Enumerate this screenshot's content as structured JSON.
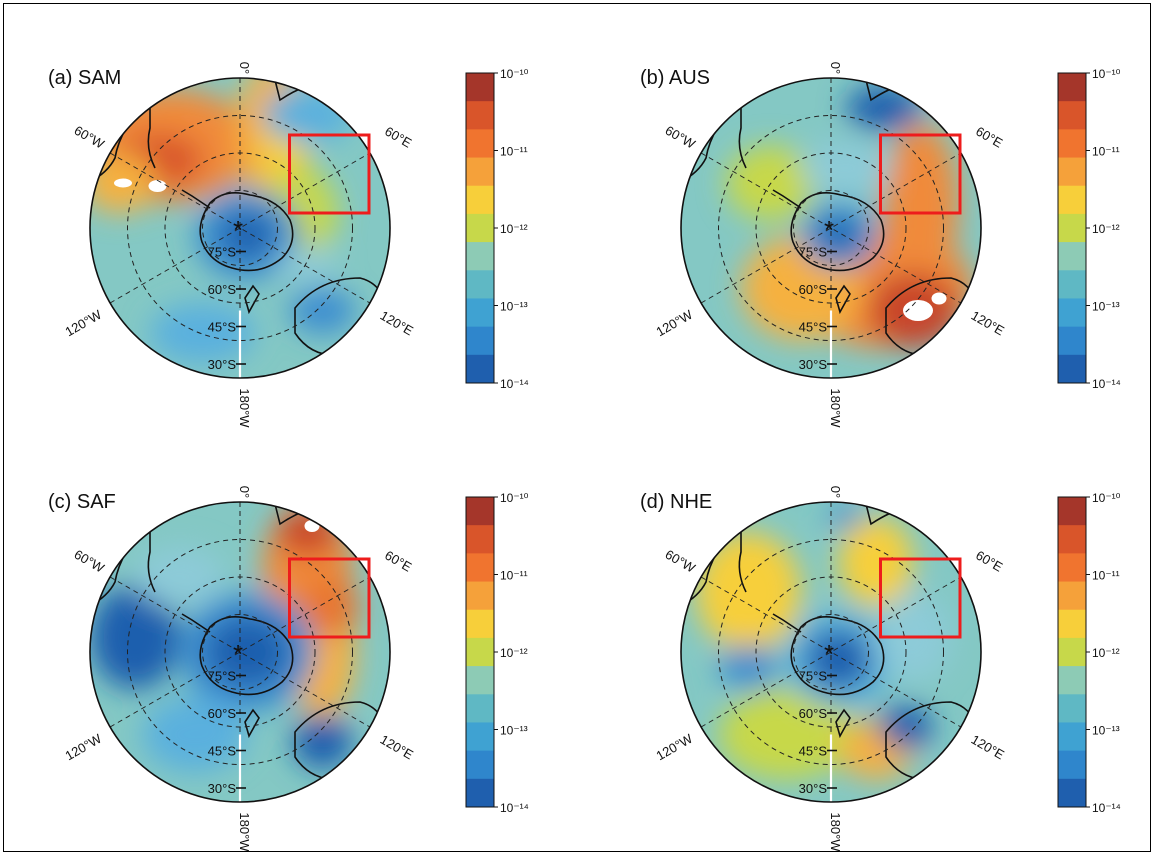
{
  "panels": [
    {
      "id": "a",
      "title": "(a) SAM",
      "blobs": [
        {
          "dx": -0.45,
          "dy": -0.55,
          "rx": 0.55,
          "ry": 0.38,
          "c": "#f08a3a"
        },
        {
          "dx": -0.55,
          "dy": -0.45,
          "rx": 0.3,
          "ry": 0.18,
          "c": "#d9552a"
        },
        {
          "dx": -0.8,
          "dy": -0.3,
          "rx": 0.25,
          "ry": 0.2,
          "c": "#f5b13f"
        },
        {
          "dx": 0.2,
          "dy": -0.65,
          "rx": 0.22,
          "ry": 0.45,
          "c": "#f5b13f"
        },
        {
          "dx": 0.3,
          "dy": -0.55,
          "rx": 0.16,
          "ry": 0.35,
          "c": "#f7cf3a"
        },
        {
          "dx": 0.45,
          "dy": -0.75,
          "rx": 0.3,
          "ry": 0.18,
          "c": "#5ab0de"
        },
        {
          "dx": 0.4,
          "dy": -0.1,
          "rx": 0.25,
          "ry": 0.3,
          "c": "#c7d84a"
        },
        {
          "dx": 0.05,
          "dy": 0.05,
          "rx": 0.35,
          "ry": 0.3,
          "c": "#3e8fd0"
        },
        {
          "dx": 0.05,
          "dy": 0.05,
          "rx": 0.18,
          "ry": 0.15,
          "c": "#1f5fae"
        },
        {
          "dx": 0.55,
          "dy": 0.55,
          "rx": 0.22,
          "ry": 0.16,
          "c": "#3e8fd0"
        },
        {
          "dx": -0.25,
          "dy": 0.7,
          "rx": 0.35,
          "ry": 0.2,
          "c": "#5ab0de"
        },
        {
          "dx": 0.45,
          "dy": 0.25,
          "rx": 0.2,
          "ry": 0.12,
          "c": "#8dcbd8"
        }
      ],
      "white_patches": [
        {
          "dx": -0.78,
          "dy": -0.3,
          "rx": 0.06,
          "ry": 0.03
        },
        {
          "dx": -0.55,
          "dy": -0.28,
          "rx": 0.06,
          "ry": 0.04
        }
      ]
    },
    {
      "id": "b",
      "title": "(b) AUS",
      "blobs": [
        {
          "dx": 0.6,
          "dy": -0.15,
          "rx": 0.25,
          "ry": 0.55,
          "c": "#f08a3a"
        },
        {
          "dx": 0.35,
          "dy": 0.4,
          "rx": 0.6,
          "ry": 0.4,
          "c": "#f08a3a"
        },
        {
          "dx": 0.55,
          "dy": 0.55,
          "rx": 0.3,
          "ry": 0.25,
          "c": "#c8452a"
        },
        {
          "dx": -0.2,
          "dy": 0.4,
          "rx": 0.4,
          "ry": 0.35,
          "c": "#f5b13f"
        },
        {
          "dx": -0.4,
          "dy": -0.3,
          "rx": 0.3,
          "ry": 0.25,
          "c": "#c7d84a"
        },
        {
          "dx": 0.35,
          "dy": -0.8,
          "rx": 0.25,
          "ry": 0.15,
          "c": "#1f5fae"
        },
        {
          "dx": 0.05,
          "dy": 0.05,
          "rx": 0.25,
          "ry": 0.22,
          "c": "#3e8fd0"
        },
        {
          "dx": 0.05,
          "dy": 0.05,
          "rx": 0.13,
          "ry": 0.11,
          "c": "#1f5fae"
        },
        {
          "dx": 0.1,
          "dy": -0.4,
          "rx": 0.3,
          "ry": 0.18,
          "c": "#8dcbd8"
        }
      ],
      "white_patches": [
        {
          "dx": 0.58,
          "dy": 0.55,
          "rx": 0.1,
          "ry": 0.07
        },
        {
          "dx": 0.72,
          "dy": 0.47,
          "rx": 0.05,
          "ry": 0.04
        }
      ]
    },
    {
      "id": "c",
      "title": "(c) SAF",
      "blobs": [
        {
          "dx": 0.45,
          "dy": -0.55,
          "rx": 0.3,
          "ry": 0.45,
          "c": "#f08a3a"
        },
        {
          "dx": 0.45,
          "dy": -0.8,
          "rx": 0.2,
          "ry": 0.15,
          "c": "#c8452a"
        },
        {
          "dx": 0.55,
          "dy": 0.0,
          "rx": 0.22,
          "ry": 0.45,
          "c": "#f5b13f"
        },
        {
          "dx": 0.6,
          "dy": -0.3,
          "rx": 0.2,
          "ry": 0.2,
          "c": "#e9762f"
        },
        {
          "dx": -0.7,
          "dy": -0.1,
          "rx": 0.3,
          "ry": 0.35,
          "c": "#1f5fae"
        },
        {
          "dx": 0.05,
          "dy": 0.0,
          "rx": 0.45,
          "ry": 0.4,
          "c": "#3e8fd0"
        },
        {
          "dx": 0.05,
          "dy": 0.0,
          "rx": 0.28,
          "ry": 0.24,
          "c": "#1f5fae"
        },
        {
          "dx": 0.55,
          "dy": 0.6,
          "rx": 0.2,
          "ry": 0.18,
          "c": "#1f5fae"
        },
        {
          "dx": -0.3,
          "dy": 0.55,
          "rx": 0.35,
          "ry": 0.25,
          "c": "#5ab0de"
        },
        {
          "dx": -0.4,
          "dy": -0.5,
          "rx": 0.3,
          "ry": 0.2,
          "c": "#8dcbd8"
        }
      ],
      "white_patches": [
        {
          "dx": 0.48,
          "dy": -0.84,
          "rx": 0.05,
          "ry": 0.04
        }
      ]
    },
    {
      "id": "d",
      "title": "(d) NHE",
      "blobs": [
        {
          "dx": -0.55,
          "dy": -0.4,
          "rx": 0.35,
          "ry": 0.4,
          "c": "#f7cf3a"
        },
        {
          "dx": 0.3,
          "dy": -0.6,
          "rx": 0.25,
          "ry": 0.3,
          "c": "#f7cf3a"
        },
        {
          "dx": -0.3,
          "dy": 0.55,
          "rx": 0.45,
          "ry": 0.3,
          "c": "#c7d84a"
        },
        {
          "dx": 0.3,
          "dy": 0.65,
          "rx": 0.25,
          "ry": 0.2,
          "c": "#f5b13f"
        },
        {
          "dx": 0.05,
          "dy": 0.05,
          "rx": 0.35,
          "ry": 0.32,
          "c": "#5ab0de"
        },
        {
          "dx": 0.05,
          "dy": 0.05,
          "rx": 0.22,
          "ry": 0.2,
          "c": "#1f5fae"
        },
        {
          "dx": 0.5,
          "dy": 0.5,
          "rx": 0.18,
          "ry": 0.15,
          "c": "#1f5fae"
        },
        {
          "dx": -0.55,
          "dy": 0.1,
          "rx": 0.2,
          "ry": 0.15,
          "c": "#3e8fd0"
        },
        {
          "dx": 0.1,
          "dy": -0.9,
          "rx": 0.12,
          "ry": 0.08,
          "c": "#3e8fd0"
        },
        {
          "dx": 0.55,
          "dy": -0.1,
          "rx": 0.25,
          "ry": 0.3,
          "c": "#8dcbd8"
        }
      ],
      "white_patches": []
    }
  ],
  "map_labels": {
    "top": "0°",
    "upper_left": "60°W",
    "upper_right": "60°E",
    "lower_left": "120°W",
    "lower_right": "120°E",
    "bottom": "180°W",
    "lat_75": "75°S",
    "lat_60": "60°S",
    "lat_45": "45°S",
    "lat_30": "30°S"
  },
  "colorbar": {
    "labels": [
      "10⁻¹⁰",
      "10⁻¹¹",
      "10⁻¹²",
      "10⁻¹³",
      "10⁻¹⁴"
    ],
    "colors": [
      "#a5362a",
      "#d9552a",
      "#f0742f",
      "#f5a13a",
      "#f7cf3a",
      "#c7d84a",
      "#8dcbb5",
      "#5fb8c4",
      "#3fa2d2",
      "#2f86cc",
      "#1f5fae"
    ]
  },
  "colors": {
    "ocean_base": "#84c8c4",
    "box": "#ee1c1c",
    "land_line": "#111111"
  }
}
